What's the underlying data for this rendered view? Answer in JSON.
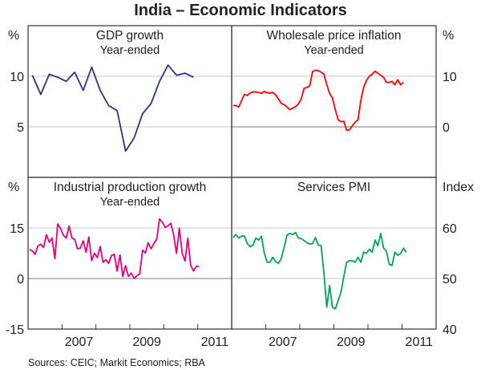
{
  "title": "India – Economic Indicators",
  "source": "Sources: CEIC; Markit Economics; RBA",
  "chart_data": [
    {
      "type": "line",
      "title": "GDP growth",
      "subtitle": "Year-ended",
      "unit": "%",
      "axis_side": "left",
      "ylim": [
        0,
        15
      ],
      "yticks": [
        "10",
        "5"
      ],
      "ytick_values": [
        10,
        5
      ],
      "xlim": [
        "2006-01",
        "2012-01"
      ],
      "color": "#2e3192",
      "series": [
        {
          "start": "2006-03",
          "frequency": "quarterly",
          "values": [
            10.1,
            8.2,
            10.2,
            9.9,
            9.5,
            10.4,
            8.6,
            10.9,
            8.6,
            7.1,
            6.6,
            2.6,
            3.9,
            6.3,
            7.3,
            9.5,
            11.1,
            10.1,
            10.3,
            9.9
          ]
        }
      ]
    },
    {
      "type": "line",
      "title": "Wholesale price inflation",
      "subtitle": "Year-ended",
      "unit": "%",
      "axis_side": "right",
      "ylim": [
        -10,
        20
      ],
      "yticks": [
        "10",
        "0"
      ],
      "ytick_values": [
        10,
        0
      ],
      "xlim": [
        "2006-01",
        "2012-01"
      ],
      "color": "#ff0000",
      "series": [
        {
          "start": "2006-01",
          "frequency": "monthly",
          "values": [
            4.2,
            4.2,
            3.9,
            5.2,
            6.4,
            6.2,
            6.7,
            6.9,
            6.9,
            6.8,
            6.6,
            7.0,
            6.7,
            6.7,
            6.8,
            6.3,
            5.5,
            4.6,
            4.4,
            3.9,
            3.4,
            3.7,
            4.0,
            4.5,
            5.5,
            7.6,
            7.8,
            8.1,
            10.9,
            11.2,
            11.1,
            10.8,
            10.4,
            8.4,
            6.6,
            5.7,
            3.4,
            1.4,
            1.0,
            1.1,
            -0.7,
            -0.6,
            0.2,
            0.9,
            1.4,
            5.2,
            7.8,
            9.2,
            10.0,
            10.4,
            11.0,
            10.6,
            10.2,
            9.8,
            8.8,
            8.8,
            9.0,
            8.3,
            9.3,
            8.3,
            8.8
          ]
        }
      ]
    },
    {
      "type": "line",
      "title": "Industrial production growth",
      "subtitle": "Year-ended",
      "unit": "%",
      "axis_side": "left",
      "ylim": [
        -15,
        30
      ],
      "yticks": [
        "15",
        "0",
        "-15"
      ],
      "ytick_values": [
        15,
        0,
        -15
      ],
      "xlim": [
        "2006-01",
        "2012-01"
      ],
      "xtick_labels": [
        "2007",
        "2009",
        "2011"
      ],
      "color": "#e6007e",
      "series": [
        {
          "start": "2006-01",
          "frequency": "monthly",
          "values": [
            8.6,
            8.2,
            7.2,
            9.6,
            10.2,
            9.2,
            13.0,
            10.8,
            12.0,
            5.9,
            16.2,
            14.8,
            12.8,
            12.0,
            15.6,
            12.1,
            11.6,
            8.8,
            9.0,
            11.2,
            7.8,
            12.3,
            5.3,
            7.5,
            6.2,
            9.5,
            4.8,
            5.6,
            4.5,
            6.8,
            7.2,
            2.2,
            7.0,
            0.6,
            3.8,
            0.6,
            1.6,
            0.0,
            0.8,
            1.4,
            8.4,
            7.6,
            10.6,
            8.8,
            10.4,
            11.6,
            17.7,
            16.7,
            15.2,
            15.6,
            16.4,
            12.8,
            7.4,
            14.9,
            7.5,
            5.2,
            12.0,
            4.0,
            2.2,
            3.6,
            3.6
          ]
        }
      ]
    },
    {
      "type": "line",
      "title": "Services PMI",
      "subtitle": "",
      "unit": "Index",
      "axis_side": "right",
      "ylim": [
        40,
        70
      ],
      "yticks": [
        "60",
        "50",
        "40"
      ],
      "ytick_values": [
        60,
        50,
        40
      ],
      "xlim": [
        "2006-01",
        "2012-01"
      ],
      "xtick_labels": [
        "2007",
        "2009",
        "2011"
      ],
      "color": "#00a651",
      "series": [
        {
          "start": "2006-01",
          "frequency": "monthly",
          "values": [
            58.1,
            58.7,
            58.0,
            58.4,
            58.4,
            56.9,
            56.3,
            56.6,
            58.0,
            57.6,
            58.4,
            55.0,
            53.2,
            53.2,
            54.2,
            53.3,
            53.0,
            54.0,
            56.2,
            58.6,
            58.9,
            58.7,
            59.1,
            58.0,
            57.9,
            57.5,
            57.1,
            56.8,
            56.9,
            58.1,
            56.6,
            56.5,
            51.0,
            44.3,
            48.6,
            44.3,
            44.0,
            45.6,
            47.3,
            50.4,
            53.2,
            53.5,
            53.5,
            53.2,
            54.2,
            53.2,
            55.2,
            55.0,
            55.8,
            55.2,
            57.6,
            56.5,
            58.9,
            56.0,
            55.4,
            52.8,
            52.6,
            55.2,
            54.6,
            54.9,
            56.0,
            55.2
          ]
        }
      ]
    }
  ]
}
